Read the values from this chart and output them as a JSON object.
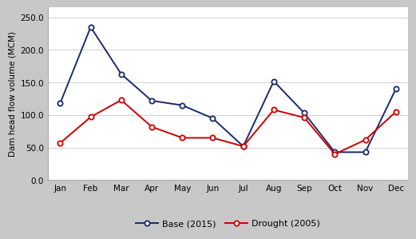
{
  "months": [
    "Jan",
    "Feb",
    "Mar",
    "Apr",
    "May",
    "Jun",
    "Jul",
    "Aug",
    "Sep",
    "Oct",
    "Nov",
    "Dec"
  ],
  "base_2015": [
    118,
    235,
    163,
    122,
    115,
    95,
    52,
    152,
    103,
    43,
    43,
    140
  ],
  "drought_2005": [
    57,
    97,
    123,
    82,
    65,
    65,
    52,
    108,
    96,
    40,
    62,
    105
  ],
  "base_color": "#1a2b6b",
  "drought_color": "#cc0000",
  "ylabel": "Dam head flow volume (MCM)",
  "yticks": [
    0.0,
    50.0,
    100.0,
    150.0,
    200.0,
    250.0
  ],
  "ylim": [
    0,
    265
  ],
  "legend_base": "Base (2015)",
  "legend_drought": "Drought (2005)",
  "background_color": "#c8c8c8",
  "plot_bg_color": "#ffffff",
  "ylabel_fontsize": 7.5,
  "tick_fontsize": 7.5,
  "legend_fontsize": 8,
  "linewidth": 1.4,
  "markersize": 4.5
}
